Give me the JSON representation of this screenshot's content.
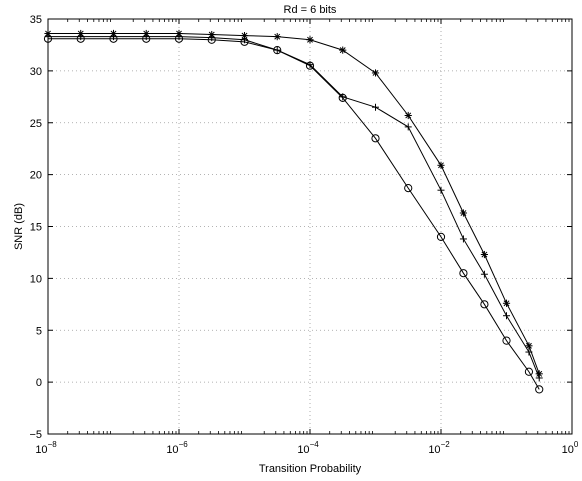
{
  "chart_data": {
    "type": "line",
    "title": "Rd = 6 bits",
    "xlabel": "Transition Probability",
    "ylabel": "SNR (dB)",
    "xscale": "log",
    "xlim": [
      1e-08,
      1
    ],
    "ylim": [
      -5,
      35
    ],
    "grid": true,
    "xticks": [
      {
        "value": 1e-08,
        "base": "10",
        "exp": "−8"
      },
      {
        "value": 1e-06,
        "base": "10",
        "exp": "−6"
      },
      {
        "value": 0.0001,
        "base": "10",
        "exp": "−4"
      },
      {
        "value": 0.01,
        "base": "10",
        "exp": "−2"
      },
      {
        "value": 1,
        "base": "10",
        "exp": "0"
      }
    ],
    "yticks": [
      -5,
      0,
      5,
      10,
      15,
      20,
      25,
      30,
      35
    ],
    "series": [
      {
        "marker": "asterisk",
        "x": [
          1e-08,
          3.16e-08,
          1e-07,
          3.16e-07,
          1e-06,
          3.16e-06,
          1e-05,
          3.16e-05,
          0.0001,
          0.000316,
          0.001,
          0.00316,
          0.01,
          0.022,
          0.046,
          0.1,
          0.22,
          0.316
        ],
        "y": [
          33.6,
          33.6,
          33.6,
          33.6,
          33.6,
          33.5,
          33.4,
          33.3,
          33.0,
          32.0,
          29.8,
          25.7,
          20.9,
          16.3,
          12.3,
          7.6,
          3.5,
          0.8
        ]
      },
      {
        "marker": "plus",
        "x": [
          1e-08,
          3.16e-08,
          1e-07,
          3.16e-07,
          1e-06,
          3.16e-06,
          1e-05,
          3.16e-05,
          0.0001,
          0.000316,
          0.001,
          0.00316,
          0.01,
          0.022,
          0.046,
          0.1,
          0.22,
          0.316
        ],
        "y": [
          33.3,
          33.3,
          33.3,
          33.3,
          33.3,
          33.2,
          33.0,
          32.0,
          30.6,
          27.5,
          26.5,
          24.6,
          18.5,
          13.8,
          10.4,
          6.4,
          2.9,
          0.4
        ]
      },
      {
        "marker": "circle",
        "x": [
          1e-08,
          3.16e-08,
          1e-07,
          3.16e-07,
          1e-06,
          3.16e-06,
          1e-05,
          3.16e-05,
          0.0001,
          0.000316,
          0.001,
          0.00316,
          0.01,
          0.022,
          0.046,
          0.1,
          0.22,
          0.316
        ],
        "y": [
          33.1,
          33.1,
          33.1,
          33.1,
          33.1,
          33.0,
          32.8,
          32.0,
          30.5,
          27.4,
          23.5,
          18.7,
          14.0,
          10.5,
          7.5,
          4.0,
          1.0,
          -0.7
        ]
      }
    ]
  }
}
